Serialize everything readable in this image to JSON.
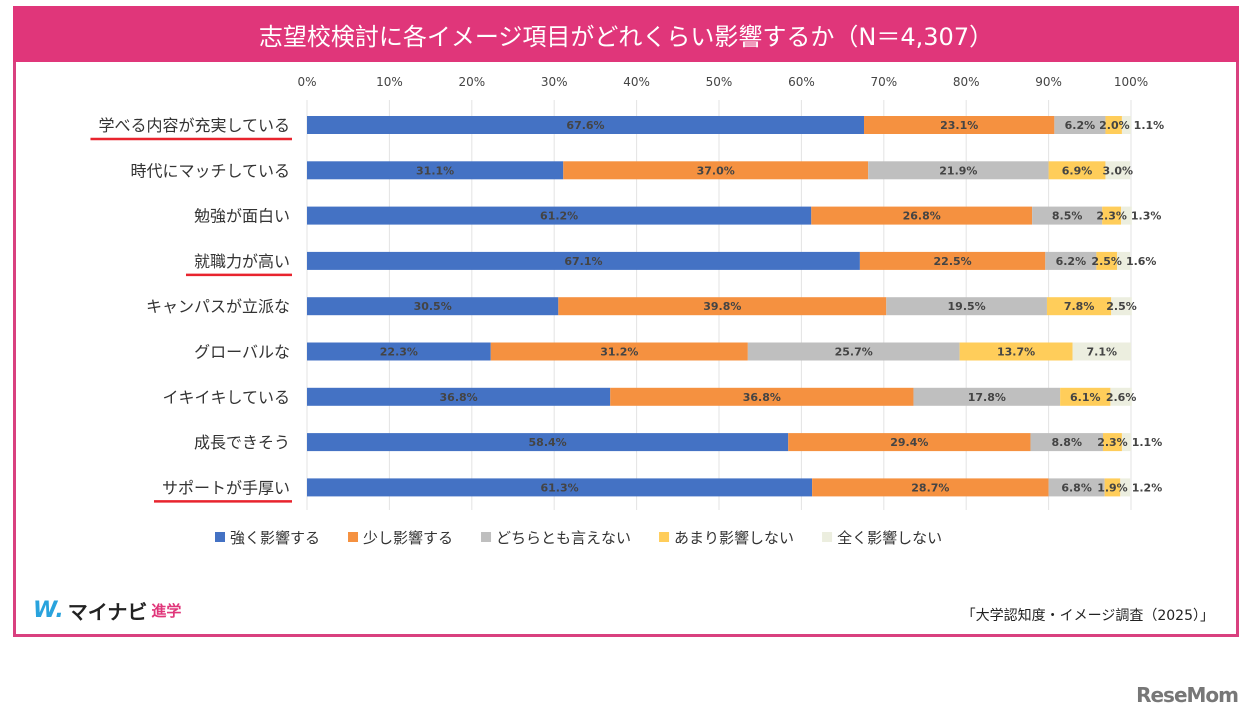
{
  "chart_data": {
    "type": "bar",
    "stacked": true,
    "orientation": "horizontal",
    "title": "志望校検討に各イメージ項目がどれくらい影響するか（N＝4,307）",
    "xlim": [
      0,
      100
    ],
    "xticks": [
      "0%",
      "10%",
      "20%",
      "30%",
      "40%",
      "50%",
      "60%",
      "70%",
      "80%",
      "90%",
      "100%"
    ],
    "grid": true,
    "legend_position": "bottom",
    "categories": [
      "学べる内容が充実している",
      "時代にマッチしている",
      "勉強が面白い",
      "就職力が高い",
      "キャンパスが立派な",
      "グローバルな",
      "イキイキしている",
      "成長できそう",
      "サポートが手厚い"
    ],
    "underlined": [
      true,
      false,
      false,
      true,
      false,
      false,
      false,
      false,
      true
    ],
    "series": [
      {
        "name": "強く影響する",
        "color": "#4472c4",
        "values": [
          67.6,
          31.1,
          61.2,
          67.1,
          30.5,
          22.3,
          36.8,
          58.4,
          61.3
        ]
      },
      {
        "name": "少し影響する",
        "color": "#f59140",
        "values": [
          23.1,
          37.0,
          26.8,
          22.5,
          39.8,
          31.2,
          36.8,
          29.4,
          28.7
        ]
      },
      {
        "name": "どちらとも言えない",
        "color": "#bfbfbf",
        "values": [
          6.2,
          21.9,
          8.5,
          6.2,
          19.5,
          25.7,
          17.8,
          8.8,
          6.8
        ]
      },
      {
        "name": "あまり影響しない",
        "color": "#ffcd5a",
        "values": [
          2.0,
          6.9,
          2.3,
          2.5,
          7.8,
          13.7,
          6.1,
          2.3,
          1.9
        ]
      },
      {
        "name": "全く影響しない",
        "color": "#eceedf",
        "values": [
          1.1,
          3.0,
          1.3,
          1.6,
          2.5,
          7.1,
          2.6,
          1.1,
          1.2
        ]
      }
    ]
  },
  "logo": {
    "mark": "W.",
    "name": "マイナビ",
    "sub": "進学"
  },
  "source": "「大学認知度・イメージ調査（2025）」",
  "watermark": "ReseMom"
}
